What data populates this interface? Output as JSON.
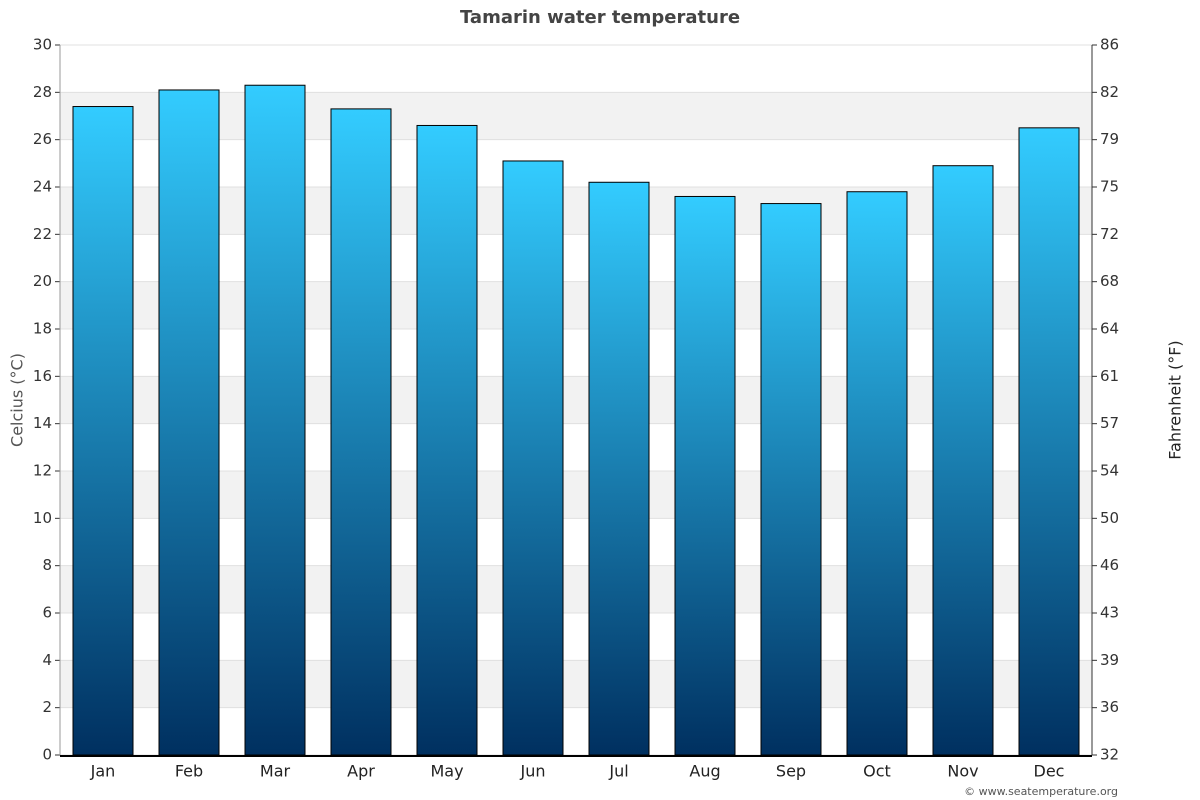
{
  "chart_data": {
    "type": "bar",
    "title": "Tamarin water temperature",
    "categories": [
      "Jan",
      "Feb",
      "Mar",
      "Apr",
      "May",
      "Jun",
      "Jul",
      "Aug",
      "Sep",
      "Oct",
      "Nov",
      "Dec"
    ],
    "values": [
      27.4,
      28.1,
      28.3,
      27.3,
      26.6,
      25.1,
      24.2,
      23.6,
      23.3,
      23.8,
      24.9,
      26.5
    ],
    "gradient": [
      "#33ccff",
      "#003060"
    ],
    "ylabel": "Celcius (°C)",
    "y2label": "Fahrenheit (°F)",
    "ylim": [
      0,
      30
    ],
    "yticks": [
      0,
      2,
      4,
      6,
      8,
      10,
      12,
      14,
      16,
      18,
      20,
      22,
      24,
      26,
      28,
      30
    ],
    "y2lim": [
      32,
      86
    ],
    "y2ticks": [
      32,
      {
        "value": 35.6,
        "label": "36"
      },
      {
        "value": 39.2,
        "label": "39"
      },
      {
        "value": 42.8,
        "label": "43"
      },
      {
        "value": 46.4,
        "label": "46"
      },
      50,
      {
        "value": 53.6,
        "label": "54"
      },
      {
        "value": 57.2,
        "label": "57"
      },
      {
        "value": 60.8,
        "label": "61"
      },
      {
        "value": 64.4,
        "label": "64"
      },
      68,
      {
        "value": 71.6,
        "label": "72"
      },
      {
        "value": 75.2,
        "label": "75"
      },
      {
        "value": 78.8,
        "label": "79"
      },
      {
        "value": 82.4,
        "label": "82"
      },
      86
    ],
    "grid": true,
    "credit": "© www.seatemperature.org"
  }
}
